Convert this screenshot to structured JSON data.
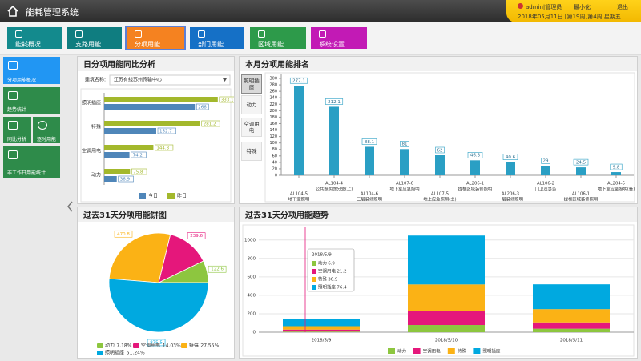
{
  "header": {
    "title": "能耗管理系统",
    "user": "admin|管理员",
    "minimize": "最小化",
    "logout": "退出",
    "date": "2018年05月11日 [第19周]第4周 星期五"
  },
  "nav": {
    "tabs": [
      "能耗概况",
      "支路用能",
      "分项用能",
      "部门用能",
      "区域用能",
      "系统设置"
    ]
  },
  "sidebar": {
    "items": [
      "分项用能概况",
      "趋势统计",
      "同比分析",
      "逐时用能",
      "非工作日用能统计"
    ]
  },
  "chart_data": [
    {
      "type": "bar",
      "orientation": "horizontal",
      "title": "日分项用能同比分析",
      "building_label": "建筑名称:",
      "building": "江苏有线苏州传输中心",
      "categories": [
        "照明插座",
        "特殊",
        "空调用电",
        "动力"
      ],
      "series": [
        {
          "name": "今日",
          "color": "#4f86b9",
          "values": [
            266,
            152.7,
            74.2,
            36.9
          ]
        },
        {
          "name": "昨日",
          "color": "#a3b82c",
          "values": [
            333.1,
            281.2,
            144.3,
            75.8
          ]
        }
      ],
      "xlim": [
        0,
        350
      ]
    },
    {
      "type": "bar",
      "title": "本月分项用能排名",
      "tabs": [
        "照明插座",
        "动力",
        "空调用电",
        "特殊"
      ],
      "categories": [
        "AL104-5",
        "AL104-4",
        "AL104-6",
        "AL107-6",
        "AL107-5",
        "AL206-1",
        "AL206-3",
        "AL106-2",
        "AL106-1",
        "AL204-5"
      ],
      "category_descriptions": [
        "地下室照明",
        "公共照明徐分支(上)",
        "二层装修照明",
        "地下室应急照明",
        "地上应急照明(主)",
        "提框区域装修照明",
        "一层装修照明",
        "门卫及事务",
        "提框区域装修照明",
        "地下室应急照明(备)"
      ],
      "values": [
        277.1,
        212.1,
        88.1,
        81,
        62,
        46.3,
        40.6,
        29,
        24.5,
        9.8
      ],
      "color": "#2a9fc4",
      "ylim": [
        0,
        300
      ],
      "yticks": [
        0,
        20,
        40,
        60,
        80,
        100,
        120,
        140,
        160,
        180,
        200,
        220,
        240,
        260,
        280,
        300
      ]
    },
    {
      "type": "pie",
      "title": "过去31天分项用能饼图",
      "categories": [
        "动力",
        "空调用电",
        "特殊",
        "照明插座"
      ],
      "values": [
        122.6,
        239.6,
        470.8,
        875.5
      ],
      "percent_labels": [
        "7.18%",
        "14.03%",
        "27.55%",
        "51.24%"
      ],
      "colors": [
        "#8dc63f",
        "#e5177b",
        "#fbb215",
        "#00a9e0"
      ]
    },
    {
      "type": "stacked-bar",
      "title": "过去31天分项用能趋势",
      "x": [
        "2018/5/9",
        "2018/5/10",
        "2018/5/11"
      ],
      "series": [
        {
          "name": "动力",
          "color": "#8dc63f",
          "values": [
            6.9,
            78,
            37.7
          ]
        },
        {
          "name": "空调用电",
          "color": "#e5177b",
          "values": [
            21.2,
            150,
            68.4
          ]
        },
        {
          "name": "特殊",
          "color": "#fbb215",
          "values": [
            36.9,
            290,
            143.9
          ]
        },
        {
          "name": "照明插座",
          "color": "#00a9e0",
          "values": [
            76.4,
            530,
            269
          ]
        }
      ],
      "ylim": [
        0,
        1050
      ],
      "yticks": [
        0,
        200,
        400,
        600,
        800,
        1000
      ],
      "grid": true,
      "tooltip_index": 0
    }
  ]
}
